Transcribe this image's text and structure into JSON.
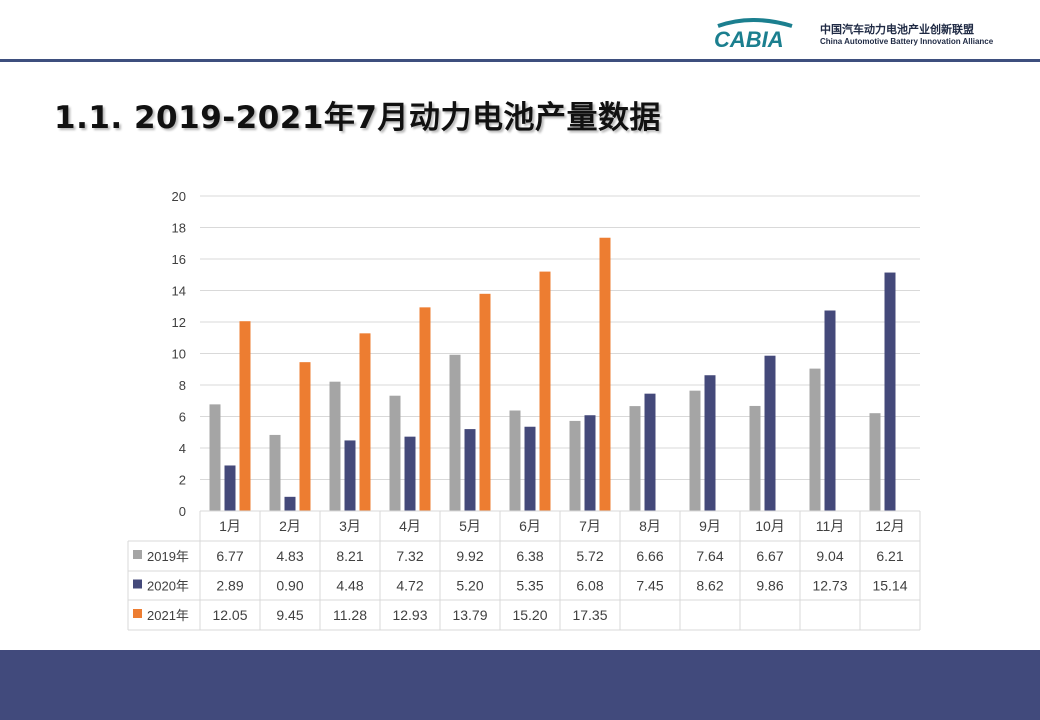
{
  "header": {
    "logo_mark": "CABIA",
    "org_cn": "中国汽车动力电池产业创新联盟",
    "org_en": "China Automotive Battery Innovation Alliance"
  },
  "page": {
    "title": "1.1.  2019-2021年7月动力电池产量数据"
  },
  "colors": {
    "header_rule": "#3e4f7e",
    "footer": "#414a7c",
    "series_2019": "#a5a5a5",
    "series_2020": "#44497a",
    "series_2021": "#ed7d31"
  },
  "chart_data": {
    "type": "bar",
    "title": "",
    "xlabel": "",
    "ylabel": "",
    "ylim": [
      0,
      20
    ],
    "yticks": [
      0,
      2,
      4,
      6,
      8,
      10,
      12,
      14,
      16,
      18,
      20
    ],
    "grid": true,
    "legend": "data-table-left",
    "categories": [
      "1月",
      "2月",
      "3月",
      "4月",
      "5月",
      "6月",
      "7月",
      "8月",
      "9月",
      "10月",
      "11月",
      "12月"
    ],
    "series": [
      {
        "name": "2019年",
        "color": "#a5a5a5",
        "values": [
          6.77,
          4.83,
          8.21,
          7.32,
          9.92,
          6.38,
          5.72,
          6.66,
          7.64,
          6.67,
          9.04,
          6.21
        ],
        "labels": [
          "6.77",
          "4.83",
          "8.21",
          "7.32",
          "9.92",
          "6.38",
          "5.72",
          "6.66",
          "7.64",
          "6.67",
          "9.04",
          "6.21"
        ]
      },
      {
        "name": "2020年",
        "color": "#44497a",
        "values": [
          2.89,
          0.9,
          4.48,
          4.72,
          5.2,
          5.35,
          6.08,
          7.45,
          8.62,
          9.86,
          12.73,
          15.14
        ],
        "labels": [
          "2.89",
          "0.90",
          "4.48",
          "4.72",
          "5.20",
          "5.35",
          "6.08",
          "7.45",
          "8.62",
          "9.86",
          "12.73",
          "15.14"
        ]
      },
      {
        "name": "2021年",
        "color": "#ed7d31",
        "values": [
          12.05,
          9.45,
          11.28,
          12.93,
          13.79,
          15.2,
          17.35,
          null,
          null,
          null,
          null,
          null
        ],
        "labels": [
          "12.05",
          "9.45",
          "11.28",
          "12.93",
          "13.79",
          "15.20",
          "17.35",
          "",
          "",
          "",
          "",
          ""
        ]
      }
    ]
  }
}
